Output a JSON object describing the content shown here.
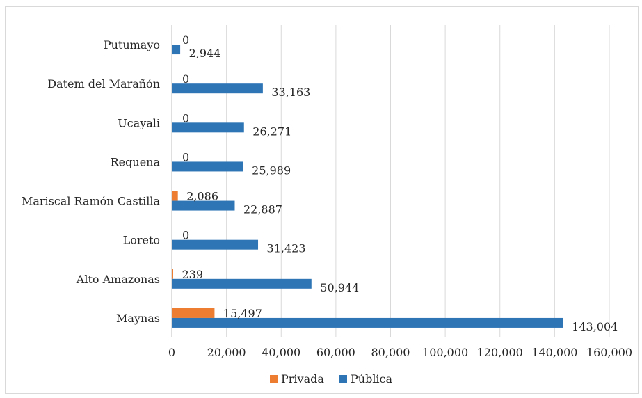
{
  "chart_data": {
    "type": "bar",
    "orientation": "horizontal",
    "title": "",
    "xlabel": "",
    "ylabel": "",
    "categories": [
      "Maynas",
      "Alto Amazonas",
      "Loreto",
      "Mariscal Ramón Castilla",
      "Requena",
      "Ucayali",
      "Datem del Marañón",
      "Putumayo"
    ],
    "series": [
      {
        "name": "Privada",
        "color": "#ED7D31",
        "values": [
          15497,
          239,
          0,
          2086,
          0,
          0,
          0,
          0
        ],
        "labels": [
          "15,497",
          "239",
          "0",
          "2,086",
          "0",
          "0",
          "0",
          "0"
        ]
      },
      {
        "name": "Pública",
        "color": "#2E75B6",
        "values": [
          143004,
          50944,
          31423,
          22887,
          25989,
          26271,
          33163,
          2944
        ],
        "labels": [
          "143,004",
          "50,944",
          "31,423",
          "22,887",
          "25,989",
          "26,271",
          "33,163",
          "2,944"
        ]
      }
    ],
    "xlim": [
      0,
      160000
    ],
    "x_ticks": [
      0,
      20000,
      40000,
      60000,
      80000,
      100000,
      120000,
      140000,
      160000
    ],
    "x_tick_labels": [
      "0",
      "20,000",
      "40,000",
      "60,000",
      "80,000",
      "100,000",
      "120,000",
      "140,000",
      "160,000"
    ],
    "grid": "vertical",
    "legend_position": "bottom"
  }
}
